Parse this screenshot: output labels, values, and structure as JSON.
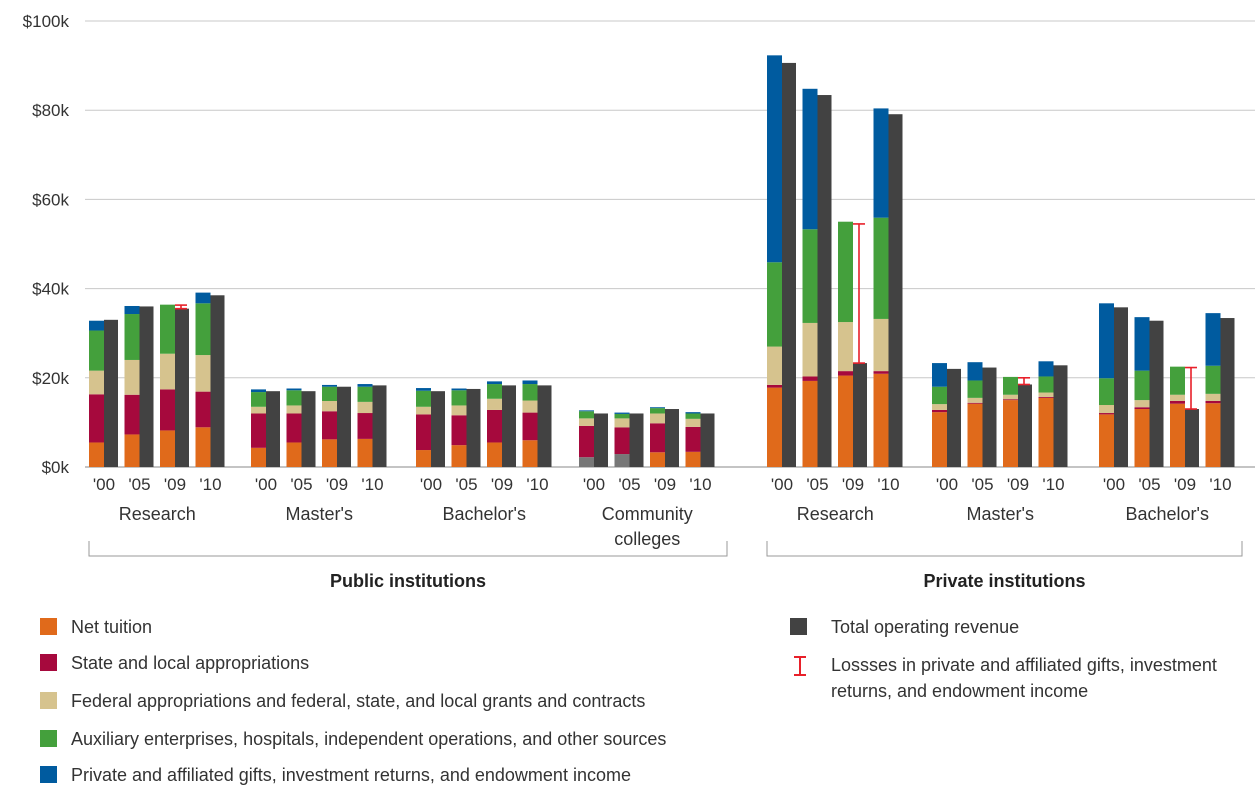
{
  "chart_data": {
    "type": "bar",
    "title": "",
    "xlabel": "",
    "ylabel": "",
    "ylim": [
      0,
      100
    ],
    "y_tick_labels": [
      "$0k",
      "$20k",
      "$40k",
      "$60k",
      "$80k",
      "$100k"
    ],
    "grid": true,
    "colors": {
      "net_tuition": "#e06a1b",
      "state_local": "#a6093d",
      "federal": "#d6c38e",
      "auxiliary": "#44a03c",
      "private_gifts": "#005b9f",
      "total": "#424242",
      "losses": "#e8202a",
      "community_first": "#777777"
    },
    "series_names": [
      "Net tuition",
      "State and local appropriations",
      "Federal appropriations and federal, state, and local grants and contracts",
      "Auxiliary enterprises, hospitals, independent operations, and other sources",
      "Private and affiliated gifts, investment returns, and endowment income",
      "Total operating revenue",
      "Lossses in private and affiliated gifts, investment returns, and endowment income"
    ],
    "sections": [
      {
        "label": "Public institutions",
        "groups": [
          {
            "label": [
              "Research"
            ],
            "years": [
              "'00",
              "'05",
              "'09",
              "'10"
            ],
            "net_tuition": [
              5.5,
              7.3,
              8.2,
              8.9
            ],
            "state_local": [
              10.8,
              8.9,
              9.2,
              8.0
            ],
            "federal": [
              5.3,
              7.8,
              8.0,
              8.2
            ],
            "auxiliary": [
              9.0,
              10.3,
              11.0,
              11.6
            ],
            "private_gifts": [
              2.2,
              1.8,
              0,
              2.4
            ],
            "total": [
              33.0,
              36.0,
              35.5,
              38.5
            ],
            "losses": [
              null,
              null,
              [
                35.5,
                36.3
              ],
              null
            ]
          },
          {
            "label": [
              "Master's"
            ],
            "years": [
              "'00",
              "'05",
              "'09",
              "'10"
            ],
            "net_tuition": [
              4.3,
              5.5,
              6.2,
              6.3
            ],
            "state_local": [
              7.7,
              6.5,
              6.3,
              5.8
            ],
            "federal": [
              1.5,
              1.8,
              2.3,
              2.5
            ],
            "auxiliary": [
              3.3,
              3.4,
              3.2,
              3.4
            ],
            "private_gifts": [
              0.6,
              0.4,
              0.4,
              0.6
            ],
            "total": [
              17.0,
              17.0,
              18.0,
              18.3
            ],
            "losses": [
              null,
              null,
              null,
              null
            ]
          },
          {
            "label": [
              "Bachelor's"
            ],
            "years": [
              "'00",
              "'05",
              "'09",
              "'10"
            ],
            "net_tuition": [
              3.8,
              4.9,
              5.5,
              6.0
            ],
            "state_local": [
              8.0,
              6.7,
              7.3,
              6.2
            ],
            "federal": [
              1.7,
              2.2,
              2.5,
              2.7
            ],
            "auxiliary": [
              3.6,
              3.4,
              3.3,
              3.7
            ],
            "private_gifts": [
              0.6,
              0.4,
              0.6,
              0.8
            ],
            "total": [
              17.0,
              17.5,
              18.3,
              18.3
            ],
            "losses": [
              null,
              null,
              null,
              null
            ]
          },
          {
            "label": [
              "Community",
              "colleges"
            ],
            "years": [
              "'00",
              "'05",
              "'09",
              "'10"
            ],
            "net_tuition": [
              2.2,
              2.9,
              3.3,
              3.4
            ],
            "state_local": [
              7.0,
              6.0,
              6.5,
              5.6
            ],
            "federal": [
              1.7,
              2.0,
              2.2,
              1.8
            ],
            "auxiliary": [
              1.6,
              1.0,
              1.2,
              1.2
            ],
            "private_gifts": [
              0.2,
              0.3,
              0.2,
              0.3
            ],
            "total": [
              12.0,
              12.0,
              13.0,
              12.0
            ],
            "losses": [
              null,
              null,
              null,
              null
            ]
          }
        ]
      },
      {
        "label": "Private institutions",
        "groups": [
          {
            "label": [
              "Research"
            ],
            "years": [
              "'00",
              "'05",
              "'09",
              "'10"
            ],
            "net_tuition": [
              17.8,
              19.3,
              20.5,
              20.9
            ],
            "state_local": [
              0.6,
              1.0,
              1.0,
              0.6
            ],
            "federal": [
              8.6,
              12.0,
              11.0,
              11.7
            ],
            "auxiliary": [
              18.9,
              21.0,
              22.5,
              22.7
            ],
            "private_gifts": [
              46.4,
              31.5,
              0,
              24.5
            ],
            "total": [
              90.6,
              83.4,
              23.3,
              79.1
            ],
            "losses": [
              null,
              null,
              [
                23.3,
                54.5
              ],
              null
            ]
          },
          {
            "label": [
              "Master's"
            ],
            "years": [
              "'00",
              "'05",
              "'09",
              "'10"
            ],
            "net_tuition": [
              12.3,
              14.2,
              15.0,
              15.5
            ],
            "state_local": [
              0.5,
              0.2,
              0.2,
              0.2
            ],
            "federal": [
              1.3,
              1.1,
              1.0,
              1.0
            ],
            "auxiliary": [
              3.9,
              3.9,
              4.0,
              3.6
            ],
            "private_gifts": [
              5.3,
              4.1,
              0,
              3.4
            ],
            "total": [
              22.0,
              22.3,
              18.5,
              22.8
            ],
            "losses": [
              null,
              null,
              [
                18.5,
                20.0
              ],
              null
            ]
          },
          {
            "label": [
              "Bachelor's"
            ],
            "years": [
              "'00",
              "'05",
              "'09",
              "'10"
            ],
            "net_tuition": [
              11.8,
              13.0,
              14.2,
              14.3
            ],
            "state_local": [
              0.3,
              0.4,
              0.6,
              0.5
            ],
            "federal": [
              1.8,
              1.6,
              1.4,
              1.6
            ],
            "auxiliary": [
              6.0,
              6.6,
              6.3,
              6.3
            ],
            "private_gifts": [
              16.8,
              12.0,
              0,
              11.8
            ],
            "total": [
              35.8,
              32.8,
              13.0,
              33.4
            ],
            "losses": [
              null,
              null,
              [
                13.0,
                22.3
              ],
              null
            ]
          }
        ]
      }
    ]
  }
}
